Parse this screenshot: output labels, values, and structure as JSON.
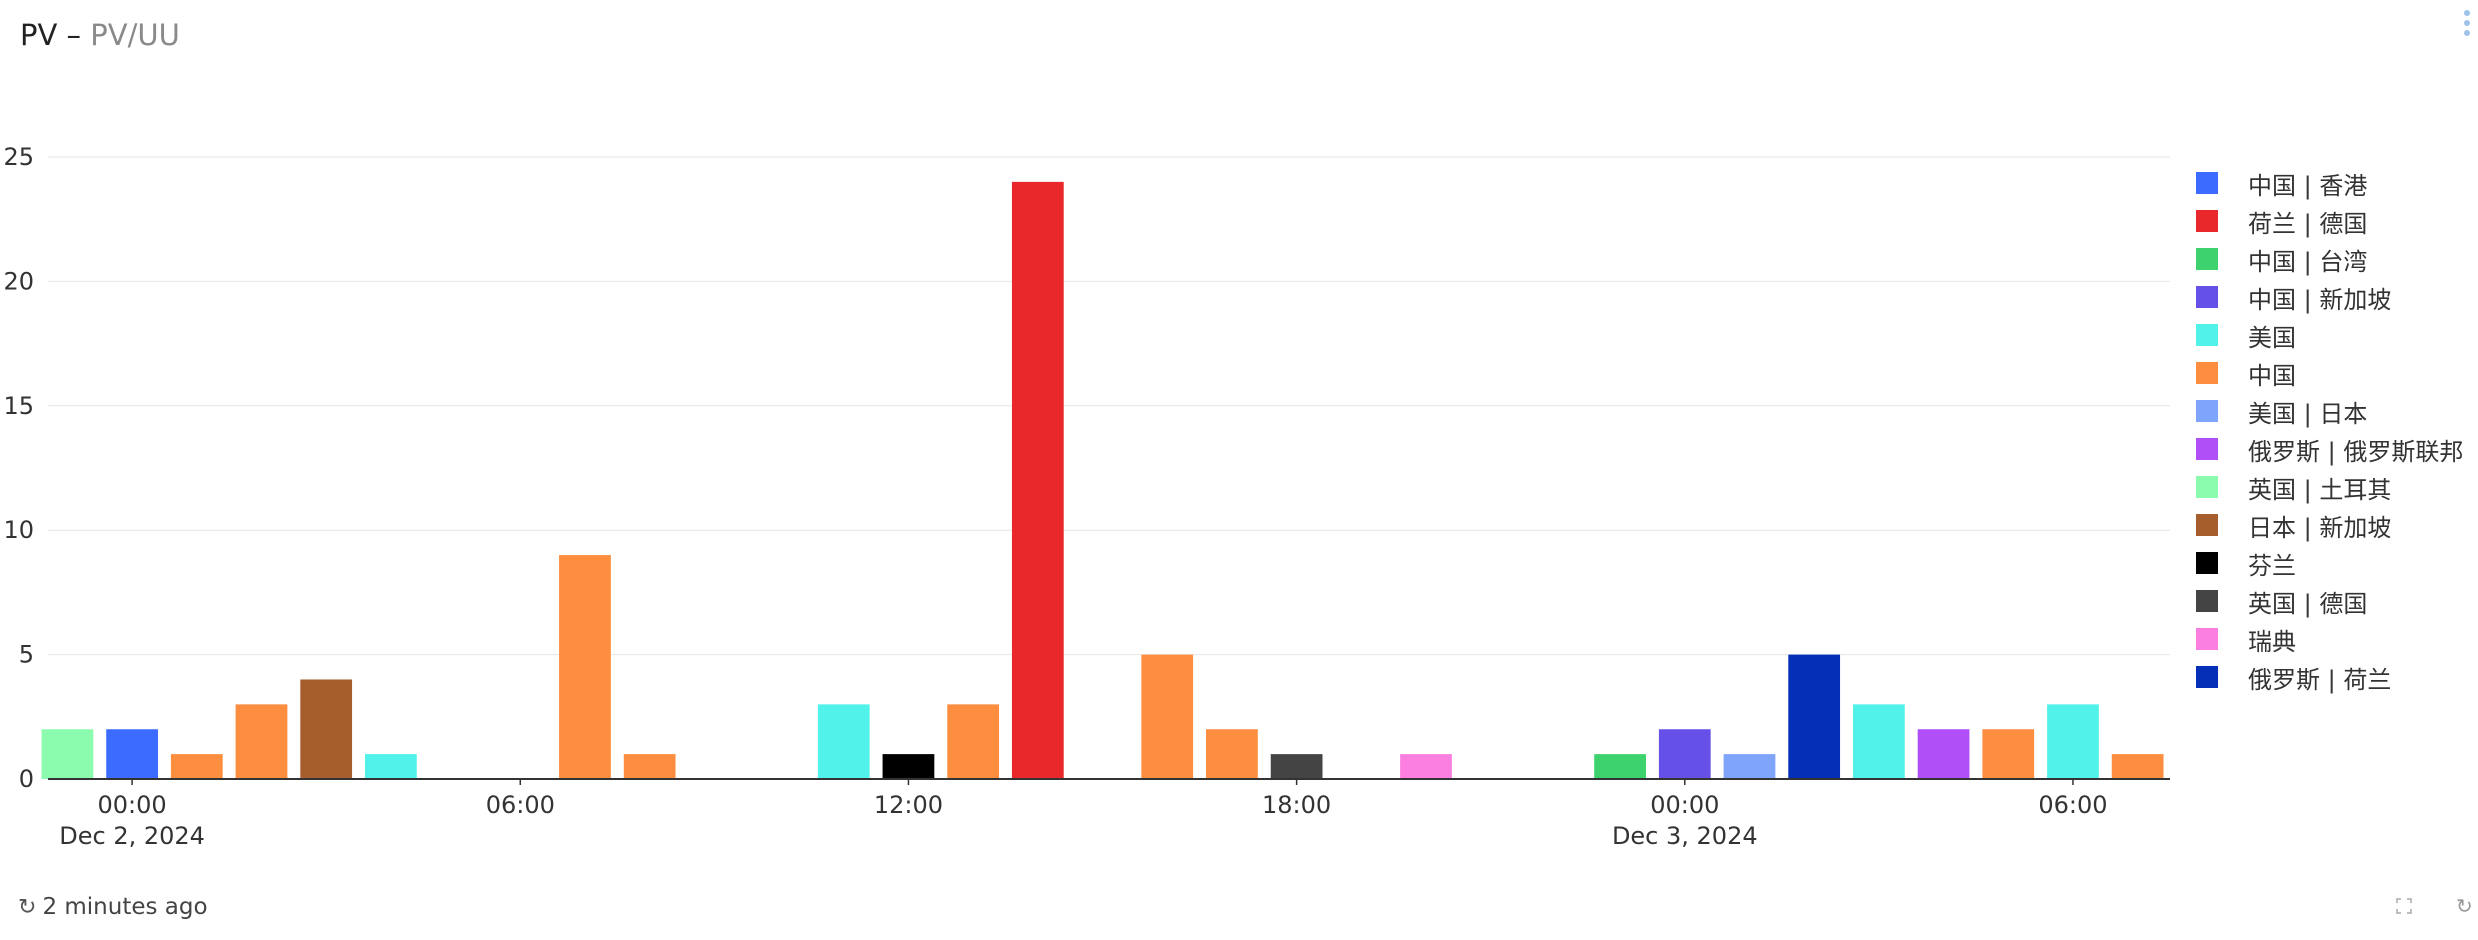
{
  "title": {
    "main": "PV",
    "separator": " – ",
    "sub": "PV/UU"
  },
  "footer": {
    "updated": "2 minutes ago",
    "icon": "refresh-icon"
  },
  "chart_data": {
    "type": "bar",
    "title": "PV",
    "ylim": [
      0,
      25
    ],
    "y_ticks": [
      "0",
      "5",
      "10",
      "15",
      "20",
      "25"
    ],
    "x_ticks": [
      {
        "label": "00:00",
        "sublabel": "Dec 2, 2024",
        "hour": 0
      },
      {
        "label": "06:00",
        "sublabel": "",
        "hour": 6
      },
      {
        "label": "12:00",
        "sublabel": "",
        "hour": 12
      },
      {
        "label": "18:00",
        "sublabel": "",
        "hour": 18
      },
      {
        "label": "00:00",
        "sublabel": "Dec 3, 2024",
        "hour": 24
      },
      {
        "label": "06:00",
        "sublabel": "",
        "hour": 30
      }
    ],
    "x_range_hours": [
      -1.3,
      31.5
    ],
    "grid": true,
    "legend_position": "right",
    "series": [
      {
        "name": "中国 | 香港",
        "color": "#3b6cff"
      },
      {
        "name": "荷兰 | 德国",
        "color": "#e8282b"
      },
      {
        "name": "中国 | 台湾",
        "color": "#3dd26e"
      },
      {
        "name": "中国 | 新加坡",
        "color": "#6550e8"
      },
      {
        "name": "美国",
        "color": "#50f2ea"
      },
      {
        "name": "中国",
        "color": "#fd8e3f"
      },
      {
        "name": "美国 | 日本",
        "color": "#7ea4fb"
      },
      {
        "name": "俄罗斯 | 俄罗斯联邦",
        "color": "#b04ef7"
      },
      {
        "name": "英国 | 土耳其",
        "color": "#8bfcae"
      },
      {
        "name": "日本 | 新加坡",
        "color": "#a65f2c"
      },
      {
        "name": "芬兰",
        "color": "#000000"
      },
      {
        "name": "英国 | 德国",
        "color": "#444444"
      },
      {
        "name": "瑞典",
        "color": "#fb7fe0"
      },
      {
        "name": "俄罗斯 | 荷兰",
        "color": "#0430b8"
      }
    ],
    "bars": [
      {
        "hour": -1,
        "value": 2,
        "series": 8
      },
      {
        "hour": 0,
        "value": 2,
        "series": 0
      },
      {
        "hour": 1,
        "value": 1,
        "series": 5
      },
      {
        "hour": 2,
        "value": 3,
        "series": 5
      },
      {
        "hour": 3,
        "value": 4,
        "series": 9
      },
      {
        "hour": 4,
        "value": 1,
        "series": 4
      },
      {
        "hour": 7,
        "value": 9,
        "series": 5
      },
      {
        "hour": 8,
        "value": 1,
        "series": 5
      },
      {
        "hour": 11,
        "value": 3,
        "series": 4
      },
      {
        "hour": 12,
        "value": 1,
        "series": 10
      },
      {
        "hour": 13,
        "value": 3,
        "series": 5
      },
      {
        "hour": 14,
        "value": 24,
        "series": 1
      },
      {
        "hour": 16,
        "value": 5,
        "series": 5
      },
      {
        "hour": 17,
        "value": 2,
        "series": 5
      },
      {
        "hour": 18,
        "value": 1,
        "series": 11
      },
      {
        "hour": 20,
        "value": 1,
        "series": 12
      },
      {
        "hour": 23,
        "value": 1,
        "series": 2
      },
      {
        "hour": 24,
        "value": 2,
        "series": 3
      },
      {
        "hour": 25,
        "value": 1,
        "series": 6
      },
      {
        "hour": 26,
        "value": 5,
        "series": 13
      },
      {
        "hour": 27,
        "value": 3,
        "series": 4
      },
      {
        "hour": 28,
        "value": 2,
        "series": 7
      },
      {
        "hour": 29,
        "value": 2,
        "series": 5
      },
      {
        "hour": 30,
        "value": 3,
        "series": 4
      },
      {
        "hour": 31,
        "value": 1,
        "series": 5
      }
    ]
  }
}
